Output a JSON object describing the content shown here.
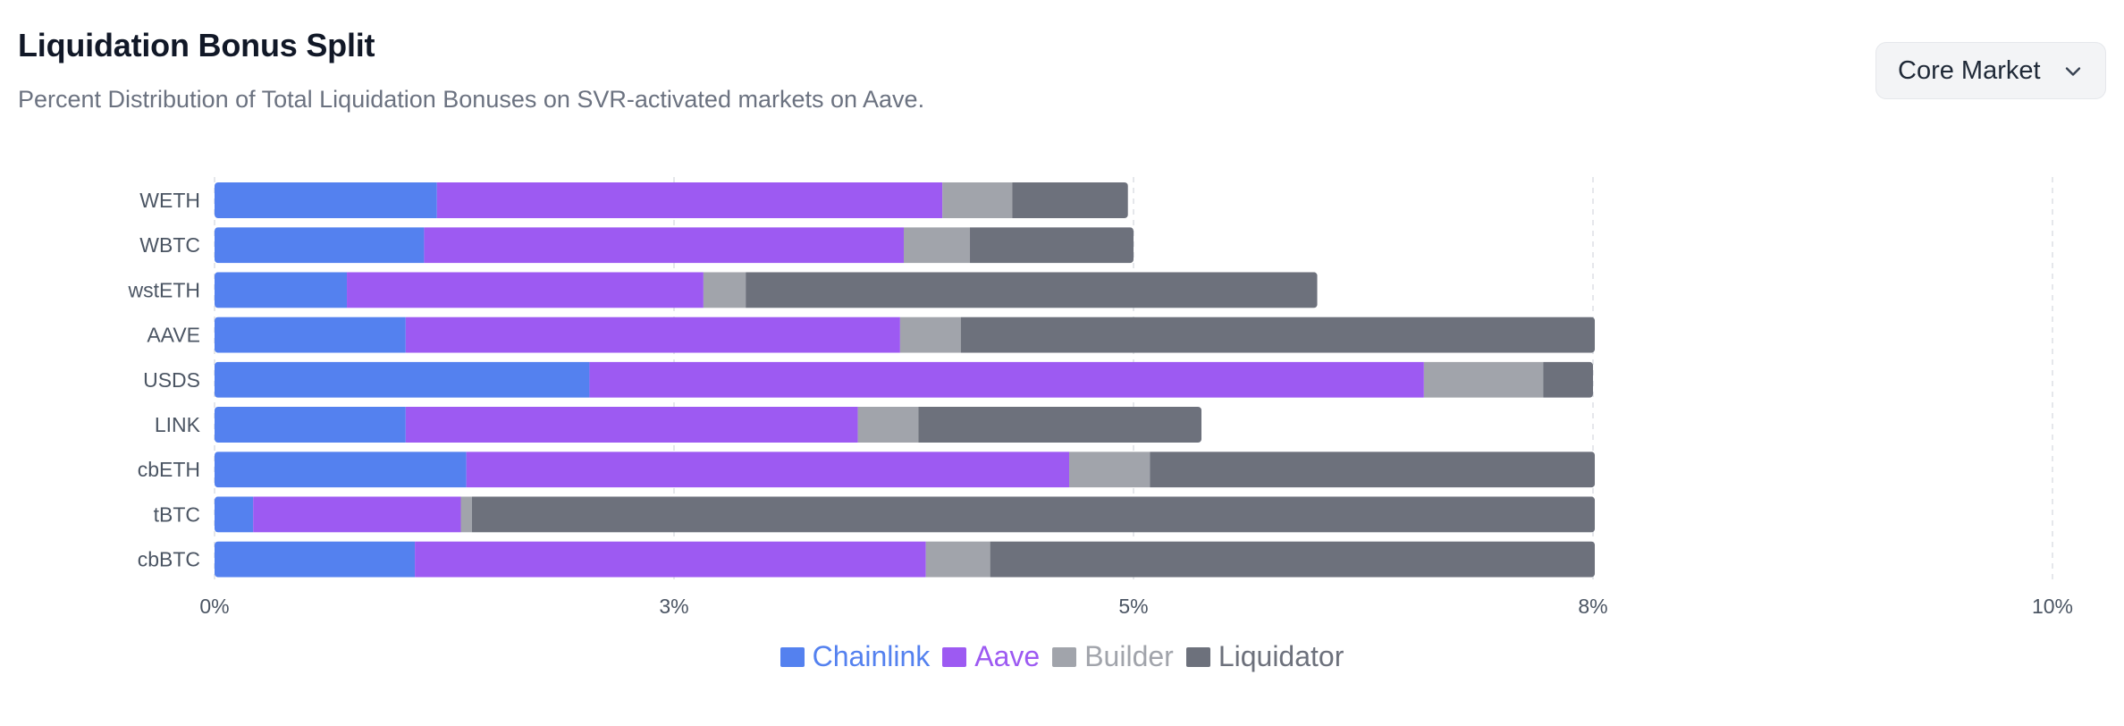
{
  "header": {
    "title": "Liquidation Bonus Split",
    "subtitle": "Percent Distribution of Total Liquidation Bonuses on SVR-activated markets on Aave."
  },
  "market_selector": {
    "label": "Core Market",
    "icon": "chevron-down-icon"
  },
  "chart_data": {
    "type": "bar",
    "orientation": "horizontal",
    "stacked": true,
    "title": "Liquidation Bonus Split",
    "categories": [
      "WETH",
      "WBTC",
      "wstETH",
      "AAVE",
      "USDS",
      "LINK",
      "cbETH",
      "tBTC",
      "cbBTC"
    ],
    "series": [
      {
        "name": "Chainlink",
        "color": "#5481ef",
        "values": [
          1.21,
          1.14,
          0.72,
          1.04,
          2.04,
          1.04,
          1.37,
          0.21,
          1.09
        ]
      },
      {
        "name": "Aave",
        "color": "#9d5af2",
        "values": [
          2.75,
          2.61,
          1.94,
          2.69,
          4.54,
          2.46,
          3.28,
          1.13,
          2.78
        ]
      },
      {
        "name": "Builder",
        "color": "#a1a4ab",
        "values": [
          0.38,
          0.36,
          0.23,
          0.33,
          0.65,
          0.33,
          0.44,
          0.06,
          0.35
        ]
      },
      {
        "name": "Liquidator",
        "color": "#6d717c",
        "values": [
          0.63,
          0.89,
          3.11,
          3.45,
          0.27,
          1.54,
          2.42,
          6.11,
          3.29
        ]
      }
    ],
    "x_ticks": [
      "0%",
      "3%",
      "5%",
      "8%",
      "10%"
    ],
    "x_tick_values": [
      0,
      2.5,
      5,
      7.5,
      10
    ],
    "xlim": [
      0,
      10
    ],
    "grid": "vertical dashed",
    "legend_position": "bottom-center"
  }
}
